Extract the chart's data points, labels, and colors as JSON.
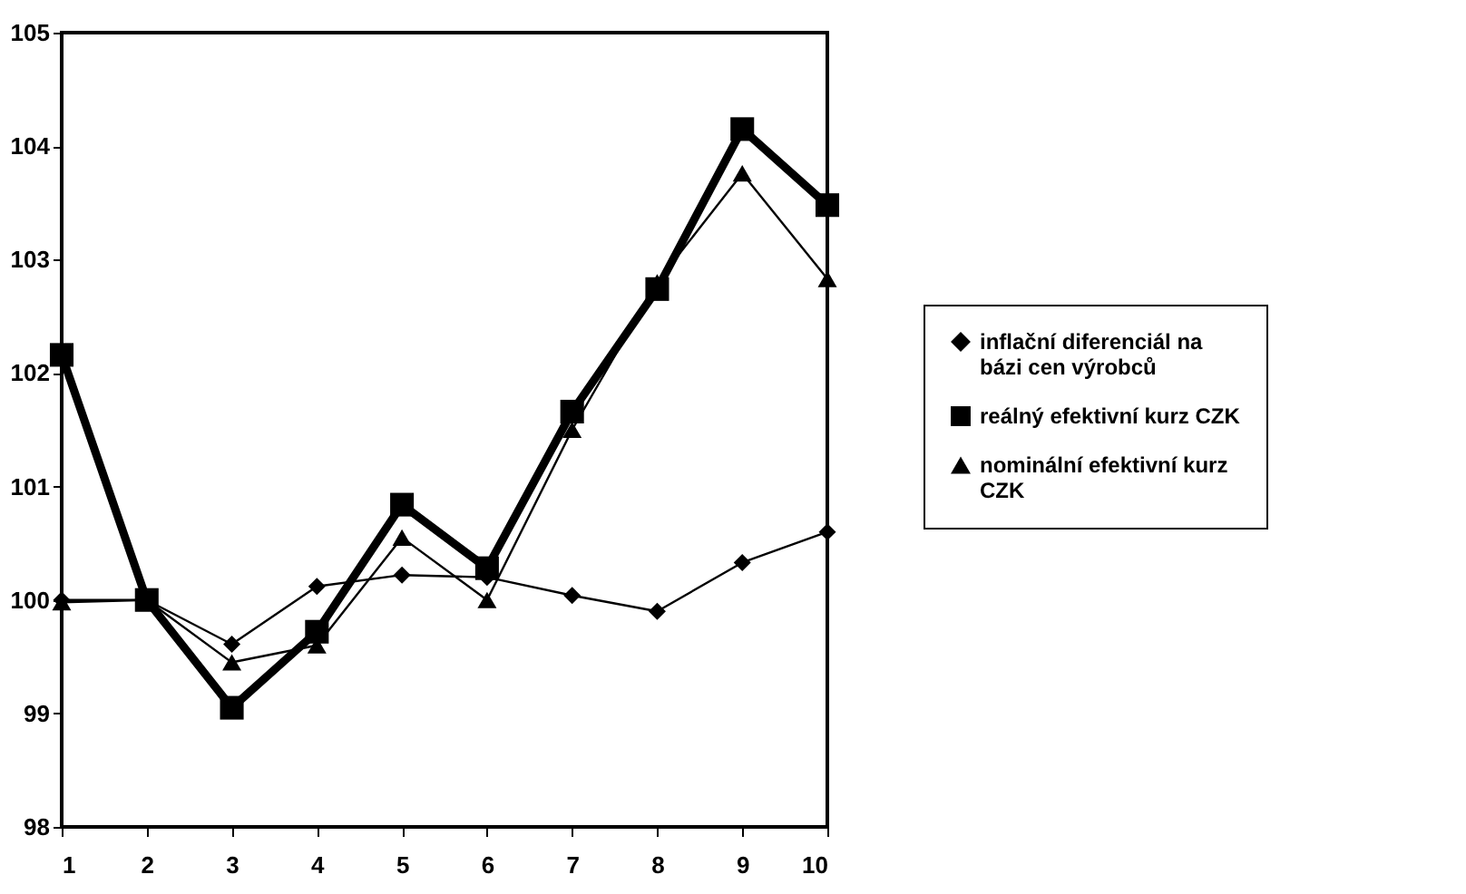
{
  "chart_data": {
    "type": "line",
    "x": [
      1,
      2,
      3,
      4,
      5,
      6,
      7,
      8,
      9,
      10
    ],
    "xlim": [
      1,
      10
    ],
    "xticks": [
      1,
      2,
      3,
      4,
      5,
      6,
      7,
      8,
      9,
      10
    ],
    "ylim": [
      98,
      105
    ],
    "yticks": [
      98,
      99,
      100,
      101,
      102,
      103,
      104,
      105
    ],
    "grid": false,
    "legend": "right",
    "line_style": "solid",
    "series": [
      {
        "name": "inflační diferenciál na bázi cen výrobců",
        "color": "#000000",
        "marker": "diamond",
        "values": [
          100.0,
          100.0,
          99.61,
          100.12,
          100.22,
          100.2,
          100.04,
          99.9,
          100.33,
          100.6
        ]
      },
      {
        "name": "reálný efektivní kurz CZK",
        "color": "#000000",
        "marker": "square",
        "values": [
          102.16,
          100.0,
          99.05,
          99.72,
          100.84,
          100.28,
          101.66,
          102.74,
          104.15,
          103.48
        ]
      },
      {
        "name": "nominální efektivní kurz CZK",
        "color": "#000000",
        "marker": "triangle",
        "values": [
          99.98,
          100.0,
          99.45,
          99.6,
          100.55,
          100.0,
          101.5,
          102.8,
          103.76,
          102.83
        ]
      }
    ]
  }
}
